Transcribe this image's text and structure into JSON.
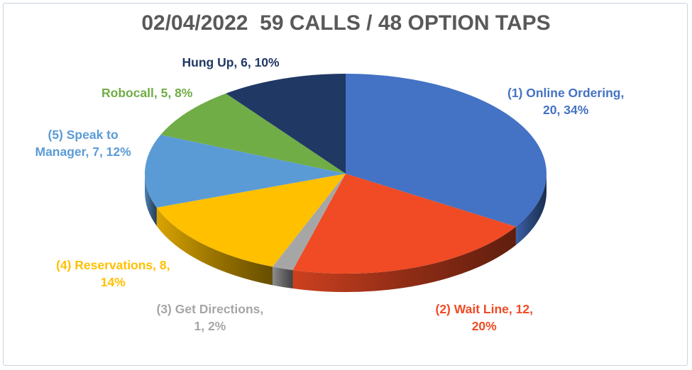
{
  "colors": {
    "online_ordering": "#4472C4",
    "wait_line": "#F04B24",
    "get_directions": "#A6A6A6",
    "reservations": "#FFC000",
    "speak_to_manager": "#5B9BD5",
    "robocall": "#70AD47",
    "hung_up": "#203864"
  },
  "chart_data": {
    "type": "pie",
    "style": "3d",
    "title": "02/04/2022  59 CALLS / 48 OPTION TAPS",
    "slices": [
      {
        "key": "online_ordering",
        "label_lines": [
          "(1) Online Ordering,",
          "20, 34%"
        ],
        "value": 20,
        "percent": 34
      },
      {
        "key": "wait_line",
        "label_lines": [
          "(2) Wait Line, 12,",
          "20%"
        ],
        "value": 12,
        "percent": 20
      },
      {
        "key": "get_directions",
        "label_lines": [
          "(3) Get Directions,",
          "1, 2%"
        ],
        "value": 1,
        "percent": 2
      },
      {
        "key": "reservations",
        "label_lines": [
          "(4) Reservations, 8,",
          "14%"
        ],
        "value": 8,
        "percent": 14
      },
      {
        "key": "speak_to_manager",
        "label_lines": [
          "(5) Speak to",
          "Manager, 7, 12%"
        ],
        "value": 7,
        "percent": 12
      },
      {
        "key": "robocall",
        "label_lines": [
          "Robocall, 5, 8%"
        ],
        "value": 5,
        "percent": 8
      },
      {
        "key": "hung_up",
        "label_lines": [
          "Hung Up, 6, 10%"
        ],
        "value": 6,
        "percent": 10
      }
    ]
  }
}
